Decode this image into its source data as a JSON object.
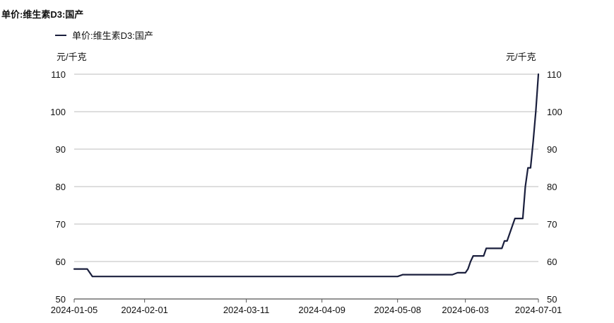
{
  "chart_data": {
    "type": "line",
    "title": "单价:维生素D3:国产",
    "legend": {
      "position": "top-left",
      "entries": [
        "单价:维生素D3:国产"
      ]
    },
    "ylabel_left": "元/千克",
    "ylabel_right": "元/千克",
    "ylim": [
      50,
      110
    ],
    "yticks": [
      110,
      100,
      90,
      80,
      70,
      60,
      50
    ],
    "x_range": [
      "2024-01-05",
      "2024-07-01"
    ],
    "xticks": [
      "2024-01-05",
      "2024-02-01",
      "2024-03-11",
      "2024-04-09",
      "2024-05-08",
      "2024-06-03",
      "2024-07-01"
    ],
    "grid": "horizontal",
    "colors": {
      "line": "#1a1f3d",
      "grid": "#bcbcbc"
    },
    "series": [
      {
        "name": "单价:维生素D3:国产",
        "x": [
          "2024-01-05",
          "2024-01-10",
          "2024-01-12",
          "2024-05-08",
          "2024-05-10",
          "2024-05-29",
          "2024-05-31",
          "2024-06-03",
          "2024-06-04",
          "2024-06-05",
          "2024-06-06",
          "2024-06-10",
          "2024-06-11",
          "2024-06-17",
          "2024-06-18",
          "2024-06-19",
          "2024-06-20",
          "2024-06-21",
          "2024-06-22",
          "2024-06-23",
          "2024-06-24",
          "2024-06-25",
          "2024-06-26",
          "2024-06-27",
          "2024-06-28",
          "2024-06-29",
          "2024-06-30",
          "2024-07-01"
        ],
        "y": [
          58,
          58,
          56,
          56,
          56.5,
          56.5,
          57,
          57,
          58,
          60,
          61.5,
          61.5,
          63.5,
          63.5,
          65.5,
          65.5,
          67.5,
          69.5,
          71.5,
          71.5,
          71.5,
          71.5,
          80,
          85,
          85,
          92,
          100,
          110
        ]
      }
    ]
  }
}
